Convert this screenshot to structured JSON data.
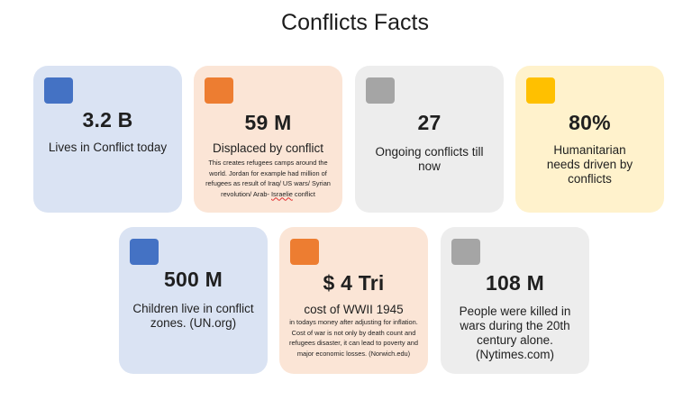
{
  "title": "Conflicts Facts",
  "colors": {
    "blue_card": "#dae3f3",
    "blue_swatch": "#4472c4",
    "orange_card": "#fbe5d6",
    "orange_swatch": "#ed7d31",
    "gray_card": "#ededed",
    "gray_swatch": "#a5a5a5",
    "yellow_card": "#fff2cc",
    "yellow_swatch": "#ffc000"
  },
  "cards": [
    {
      "stat": "3.2 B",
      "label": "Lives in Conflict today",
      "note": "",
      "color": "blue"
    },
    {
      "stat": "59 M",
      "label": "Displaced by conflict",
      "note_main": "This creates refugees camps around the world. Jordan for example had million of refugees as result of Iraq/ US wars/ Syrian revolution/ Arab-",
      "note_tail": "Israelie",
      "note_end": " conflict",
      "color": "orange"
    },
    {
      "stat": "27",
      "label": "Ongoing conflicts till now",
      "note": "",
      "color": "gray"
    },
    {
      "stat": "80%",
      "label": "Humanitarian needs driven by conflicts",
      "note": "",
      "color": "yellow"
    },
    {
      "stat": "500 M",
      "label": "Children live in conflict zones. (UN.org)",
      "note": "",
      "color": "blue"
    },
    {
      "stat": "$ 4 Tri",
      "label": "cost of WWII 1945",
      "note": "in todays money after adjusting for inflation. Cost of war is not only by death count and refugees disaster, it can lead to poverty and major economic losses. (Norwich.edu)",
      "color": "orange"
    },
    {
      "stat": "108 M",
      "label": "People were killed in wars during the 20th century alone. (Nytimes.com)",
      "note": "",
      "color": "gray"
    }
  ]
}
